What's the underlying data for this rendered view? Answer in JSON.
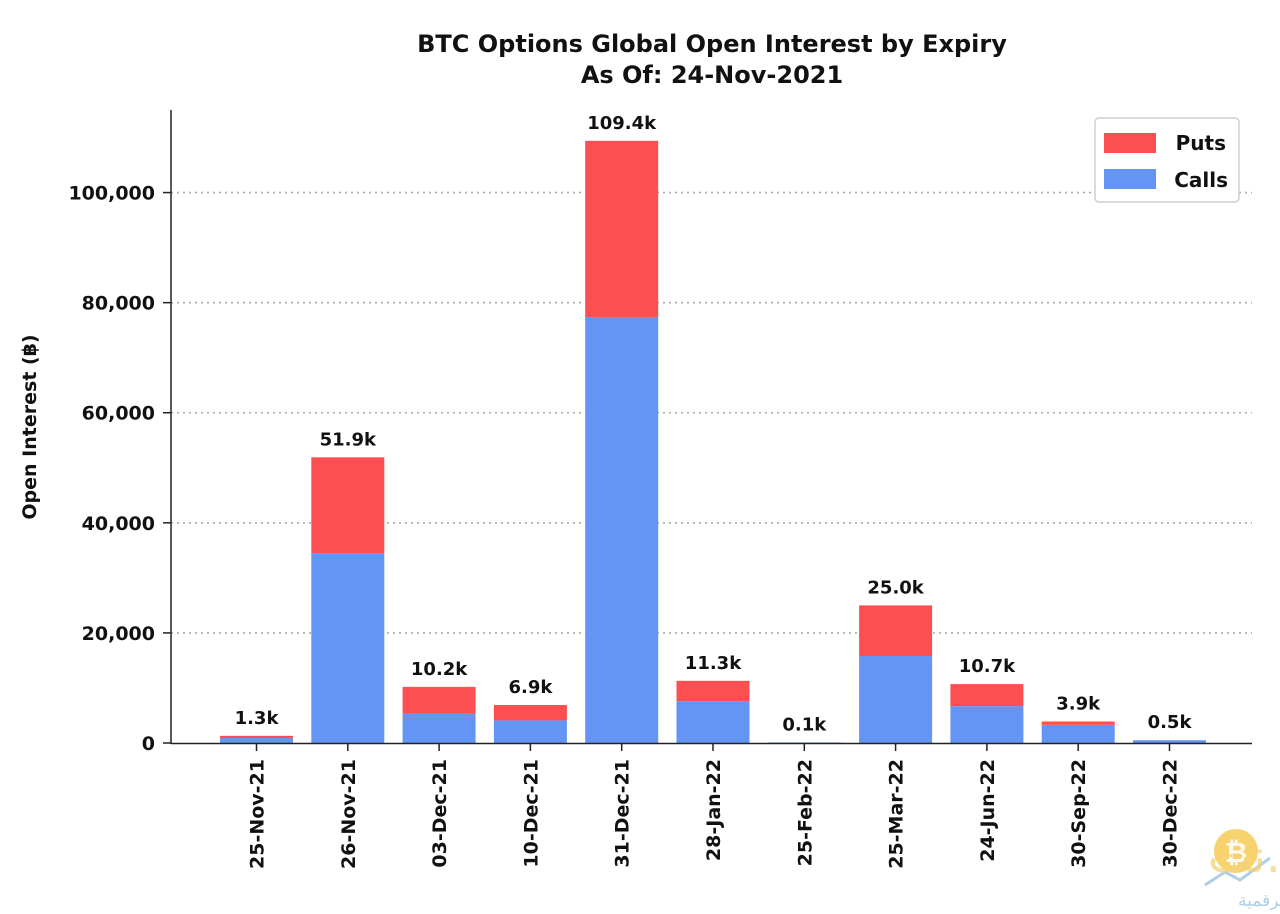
{
  "chart_data": {
    "type": "bar",
    "stacked": true,
    "title": "BTC Options Global Open Interest by Expiry",
    "subtitle": "As Of: 24-Nov-2021",
    "ylabel": "Open Interest (฿)",
    "xlabel": "",
    "ylim": [
      0,
      115000
    ],
    "yticks": [
      0,
      20000,
      40000,
      60000,
      80000,
      100000
    ],
    "ytick_labels": [
      "0",
      "20,000",
      "40,000",
      "60,000",
      "80,000",
      "100,000"
    ],
    "grid": "horizontal-dotted",
    "legend_position": "top-right",
    "categories": [
      "25-Nov-21",
      "26-Nov-21",
      "03-Dec-21",
      "10-Dec-21",
      "31-Dec-21",
      "28-Jan-22",
      "25-Feb-22",
      "25-Mar-22",
      "24-Jun-22",
      "30-Sep-22",
      "30-Dec-22"
    ],
    "series": [
      {
        "name": "Calls",
        "color": "#6495f5",
        "values": [
          900,
          34500,
          5300,
          4100,
          77400,
          7600,
          100,
          15800,
          6700,
          3300,
          500
        ]
      },
      {
        "name": "Puts",
        "color": "#fb4f51",
        "values": [
          400,
          17400,
          4900,
          2800,
          32000,
          3700,
          0,
          9200,
          4000,
          600,
          0
        ]
      }
    ],
    "legend_order": [
      "Puts",
      "Calls"
    ],
    "data_labels": [
      "1.3k",
      "51.9k",
      "10.2k",
      "6.9k",
      "109.4k",
      "11.3k",
      "0.1k",
      "25.0k",
      "10.7k",
      "3.9k",
      "0.5k"
    ]
  },
  "watermark": {
    "brand": "العربية.نت",
    "tagline": "أخبار العملات الرقمية"
  }
}
